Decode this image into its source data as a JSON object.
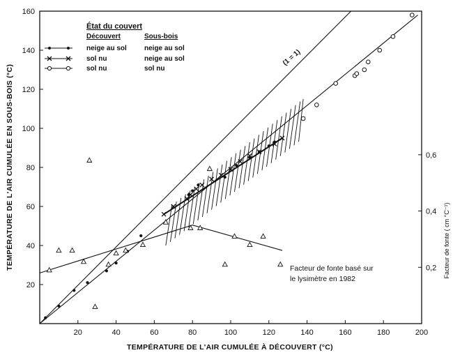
{
  "chart_data": {
    "type": "scatter",
    "xlabel": "TEMPÉRATURE DE L'AIR CUMULÉE À DÉCOUVERT (°C)",
    "ylabel": "TEMPÉRATURE DE L'AIR CUMULÉE EN SOUS-BOIS (°C)",
    "y2label": "Facteur de fonte ( cm °C⁻¹)",
    "xlim": [
      0,
      200
    ],
    "ylim": [
      0,
      160
    ],
    "x_ticks": [
      "20",
      "40",
      "60",
      "80",
      "100",
      "120",
      "140",
      "160",
      "180",
      "200"
    ],
    "y_ticks": [
      "20",
      "40",
      "60",
      "80",
      "100",
      "120",
      "140",
      "160"
    ],
    "y2_ticks": [
      {
        "label": "0,2",
        "value": 0.2
      },
      {
        "label": "0,4",
        "value": 0.4
      },
      {
        "label": "0,6",
        "value": 0.6
      }
    ],
    "y2lim": [
      0,
      1.11
    ],
    "grid": false,
    "legend": {
      "title": "État du couvert",
      "headers": [
        "Découvert",
        "Sous-bois"
      ],
      "entries": [
        {
          "marker": "dot",
          "decouvert": "neige au sol",
          "sous_bois": "neige au sol"
        },
        {
          "marker": "cross",
          "decouvert": "sol nu",
          "sous_bois": "neige au sol"
        },
        {
          "marker": "circle",
          "decouvert": "sol nu",
          "sous_bois": "sol nu"
        }
      ]
    },
    "one_to_one_label": "(1 = 1)",
    "annotation": [
      "Facteur de fonte basé sur",
      "le lysimètre en 1982"
    ],
    "series": [
      {
        "marker": "dot",
        "points": [
          [
            3,
            3
          ],
          [
            10,
            9
          ],
          [
            18,
            17
          ],
          [
            25,
            21
          ],
          [
            35,
            27
          ],
          [
            40,
            31
          ],
          [
            46,
            37
          ],
          [
            53,
            45
          ],
          [
            78,
            66
          ],
          [
            80,
            68
          ],
          [
            83,
            71
          ],
          [
            97,
            75
          ],
          [
            103,
            81
          ],
          [
            110,
            85
          ],
          [
            115,
            88
          ],
          [
            120,
            91
          ],
          [
            123,
            93
          ]
        ]
      },
      {
        "marker": "cross",
        "points": [
          [
            65,
            56
          ],
          [
            70,
            60
          ],
          [
            77,
            64
          ],
          [
            79,
            66
          ],
          [
            82,
            69
          ],
          [
            85,
            71
          ],
          [
            90,
            74
          ],
          [
            95,
            76
          ],
          [
            100,
            79
          ],
          [
            105,
            83
          ],
          [
            110,
            86
          ],
          [
            115,
            88
          ],
          [
            123,
            92
          ],
          [
            127,
            95
          ]
        ]
      },
      {
        "marker": "circle",
        "points": [
          [
            138,
            105
          ],
          [
            145,
            112
          ],
          [
            155,
            123
          ],
          [
            165,
            127
          ],
          [
            166,
            128
          ],
          [
            170,
            130
          ],
          [
            172,
            134
          ],
          [
            178,
            140
          ],
          [
            185,
            147
          ],
          [
            195,
            158
          ]
        ]
      },
      {
        "marker": "triangle",
        "axis": "y2",
        "points": [
          [
            5,
            0.19
          ],
          [
            10,
            0.26
          ],
          [
            17,
            0.26
          ],
          [
            23,
            0.22
          ],
          [
            26,
            0.58
          ],
          [
            29,
            0.06
          ],
          [
            36,
            0.21
          ],
          [
            40,
            0.25
          ],
          [
            45,
            0.26
          ],
          [
            54,
            0.28
          ],
          [
            66,
            0.36
          ],
          [
            79,
            0.34
          ],
          [
            84,
            0.34
          ],
          [
            89,
            0.55
          ],
          [
            97,
            0.21
          ],
          [
            102,
            0.31
          ],
          [
            110,
            0.28
          ],
          [
            117,
            0.31
          ],
          [
            126,
            0.21
          ]
        ]
      }
    ],
    "lines": [
      {
        "name": "1:1",
        "points": [
          [
            0,
            0
          ],
          [
            163,
            160
          ]
        ]
      },
      {
        "name": "regression",
        "points": [
          [
            0,
            0
          ],
          [
            198,
            158
          ]
        ]
      },
      {
        "name": "melt-factor-trend",
        "axis": "y2",
        "points": [
          [
            0,
            0.18
          ],
          [
            80,
            0.35
          ],
          [
            127,
            0.26
          ]
        ]
      },
      {
        "name": "cross-fit",
        "points": [
          [
            65,
            56
          ],
          [
            127,
            95
          ]
        ]
      }
    ],
    "band": {
      "x_start": 66,
      "x_end": 138,
      "lower": [
        [
          66,
          40
        ],
        [
          138,
          95
        ]
      ],
      "upper": [
        [
          66,
          58
        ],
        [
          138,
          115
        ]
      ]
    }
  }
}
